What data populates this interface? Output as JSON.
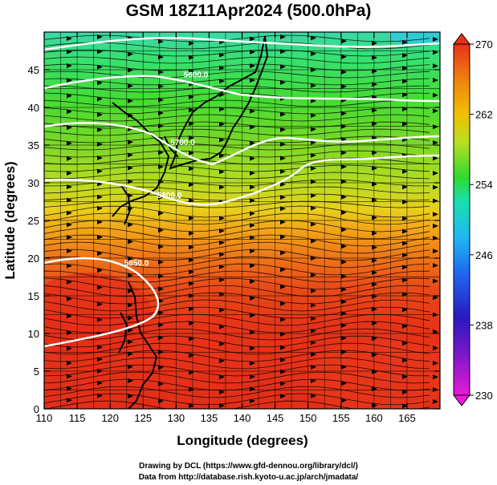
{
  "title": "GSM 18Z11Apr2024 (500.0hPa)",
  "credits": {
    "line1": "Drawing by DCL (https://www.gfd-dennou.org/library/dcl/)",
    "line2": "Data from http://database.rish.kyoto-u.ac.jp/arch/jmadata/"
  },
  "map": {
    "xlabel": "Longitude (degrees)",
    "ylabel": "Latitude (degrees)",
    "xlim": [
      110,
      170
    ],
    "ylim": [
      0,
      50
    ],
    "xticks": [
      "110",
      "115",
      "120",
      "125",
      "130",
      "135",
      "140",
      "145",
      "150",
      "155",
      "160",
      "165"
    ],
    "yticks": [
      "0",
      "5",
      "10",
      "15",
      "20",
      "25",
      "30",
      "35",
      "40",
      "45"
    ],
    "contour_labels": [
      "5600.0",
      "5700.0",
      "5800.0",
      "5850.0"
    ]
  },
  "colorbar": {
    "ticks": [
      "230",
      "238",
      "246",
      "254",
      "262",
      "270"
    ],
    "range": [
      230,
      270
    ],
    "colors": [
      "#e81ad8",
      "#2a18c0",
      "#1f9af0",
      "#18e6c8",
      "#30d830",
      "#b8e020",
      "#f0c000",
      "#f08010",
      "#e83018"
    ]
  },
  "chart_data": {
    "type": "heatmap",
    "variable": "temperature (K) at 500.0hPa with streamlines and geopotential height contours",
    "temperature_by_latitude": [
      {
        "lat": 48,
        "value": 248
      },
      {
        "lat": 45,
        "value": 251
      },
      {
        "lat": 40,
        "value": 254
      },
      {
        "lat": 35,
        "value": 256
      },
      {
        "lat": 30,
        "value": 259
      },
      {
        "lat": 25,
        "value": 263
      },
      {
        "lat": 20,
        "value": 266
      },
      {
        "lat": 15,
        "value": 268
      },
      {
        "lat": 10,
        "value": 268
      },
      {
        "lat": 5,
        "value": 268
      },
      {
        "lat": 0,
        "value": 268
      }
    ],
    "contours": [
      {
        "label": "5600.0",
        "lon": 133,
        "lat": 44
      },
      {
        "label": "5700.0",
        "lon": 131,
        "lat": 35
      },
      {
        "label": "5800.0",
        "lon": 129,
        "lat": 28
      },
      {
        "label": "5850.0",
        "lon": 124,
        "lat": 19
      }
    ],
    "xlabel": "Longitude (degrees)",
    "ylabel": "Latitude (degrees)",
    "xlim": [
      110,
      170
    ],
    "ylim": [
      0,
      50
    ],
    "grid": true
  }
}
